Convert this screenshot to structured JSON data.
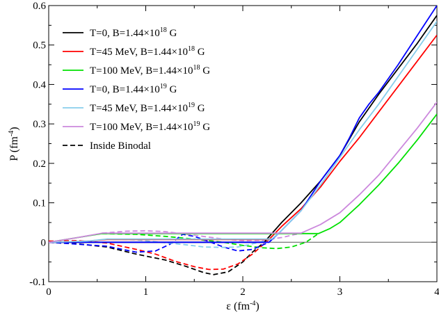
{
  "chart_data": {
    "type": "line",
    "xlabel": {
      "main": "ε (fm",
      "exp": "-4",
      "tail": ")"
    },
    "ylabel": {
      "main": "P (fm",
      "exp": "-4",
      "tail": ")"
    },
    "xlim": [
      0,
      4
    ],
    "ylim": [
      -0.1,
      0.6
    ],
    "xticks": [
      0,
      1,
      2,
      3,
      4
    ],
    "xtick_labels": [
      "0",
      "1",
      "2",
      "3",
      "4"
    ],
    "yticks": [
      -0.1,
      0,
      0.1,
      0.2,
      0.3,
      0.4,
      0.5,
      0.6
    ],
    "ytick_labels": [
      "-0.1",
      "0",
      "0.1",
      "0.2",
      "0.3",
      "0.4",
      "0.5",
      "0.6"
    ],
    "zero_line": true,
    "grid": false,
    "legend_position": "top-left",
    "series": [
      {
        "name": "T=0, B=1.44×10^18 G",
        "label": {
          "pre": "T=0, B=1.44×10",
          "exp": "18",
          "post": " G"
        },
        "color": "#000000",
        "x": [
          0,
          0.5,
          0.58,
          2.22,
          2.4,
          2.6,
          2.8,
          3.0,
          3.2,
          3.4,
          3.6,
          3.8,
          4.0
        ],
        "y": [
          0,
          0,
          0,
          0,
          0.05,
          0.1,
          0.155,
          0.22,
          0.305,
          0.375,
          0.44,
          0.505,
          0.575
        ]
      },
      {
        "name": "T=45 MeV, B=1.44×10^18 G",
        "label": {
          "pre": "T=45 MeV, B=1.44×10",
          "exp": "18",
          "post": " G"
        },
        "color": "#ff0000",
        "x": [
          0,
          0.4,
          0.6,
          2.27,
          2.4,
          2.6,
          2.8,
          3.0,
          3.2,
          3.4,
          3.6,
          3.8,
          4.0
        ],
        "y": [
          0,
          0.003,
          0.007,
          0.007,
          0.04,
          0.085,
          0.14,
          0.205,
          0.265,
          0.33,
          0.395,
          0.46,
          0.525
        ]
      },
      {
        "name": "T=100 MeV, B=1.44×10^18 G",
        "label": {
          "pre": "T=100 MeV, B=1.44×10",
          "exp": "18",
          "post": " G"
        },
        "color": "#00e000",
        "x": [
          0,
          0.3,
          0.55,
          2.78,
          2.9,
          3.0,
          3.2,
          3.4,
          3.6,
          3.8,
          4.0
        ],
        "y": [
          0,
          0.012,
          0.022,
          0.022,
          0.035,
          0.05,
          0.095,
          0.145,
          0.2,
          0.26,
          0.325
        ]
      },
      {
        "name": "T=0, B=1.44×10^19 G",
        "label": {
          "pre": "T=0, B=1.44×10",
          "exp": "19",
          "post": " G"
        },
        "color": "#0000ff",
        "x": [
          0,
          0.5,
          0.58,
          2.27,
          2.4,
          2.6,
          2.8,
          3.0,
          3.1,
          3.2,
          3.3,
          3.4,
          3.6,
          3.8,
          4.0
        ],
        "y": [
          0,
          0,
          0,
          0,
          0.03,
          0.08,
          0.155,
          0.22,
          0.265,
          0.315,
          0.35,
          0.38,
          0.45,
          0.525,
          0.6
        ]
      },
      {
        "name": "T=45 MeV, B=1.44×10^19 G",
        "label": {
          "pre": "T=45 MeV, B=1.44×10",
          "exp": "19",
          "post": " G"
        },
        "color": "#87ceeb",
        "x": [
          0,
          0.4,
          0.6,
          2.3,
          2.4,
          2.6,
          2.8,
          3.0,
          3.2,
          3.4,
          3.6,
          3.8,
          4.0
        ],
        "y": [
          0,
          0.003,
          0.008,
          0.008,
          0.03,
          0.08,
          0.145,
          0.215,
          0.285,
          0.35,
          0.42,
          0.49,
          0.56
        ]
      },
      {
        "name": "T=100 MeV, B=1.44×10^19 G",
        "label": {
          "pre": "T=100 MeV, B=1.44×10",
          "exp": "19",
          "post": " G"
        },
        "color": "#cc88dd",
        "x": [
          0,
          0.3,
          0.55,
          2.6,
          2.8,
          3.0,
          3.2,
          3.4,
          3.6,
          3.8,
          4.0
        ],
        "y": [
          0,
          0.012,
          0.023,
          0.023,
          0.045,
          0.075,
          0.12,
          0.17,
          0.23,
          0.29,
          0.355
        ]
      }
    ],
    "binodal": {
      "name": "Inside Binodal",
      "curves": [
        {
          "color": "#000000",
          "x": [
            0,
            0.3,
            0.6,
            0.9,
            1.2,
            1.4,
            1.6,
            1.7,
            1.85,
            2.0,
            2.1,
            2.22
          ],
          "y": [
            0,
            -0.004,
            -0.012,
            -0.03,
            -0.045,
            -0.06,
            -0.077,
            -0.082,
            -0.075,
            -0.05,
            -0.025,
            0
          ]
        },
        {
          "color": "#ff0000",
          "x": [
            0,
            0.3,
            0.6,
            0.9,
            1.1,
            1.3,
            1.5,
            1.65,
            1.8,
            1.95,
            2.1,
            2.27
          ],
          "y": [
            0.003,
            0.004,
            -0.002,
            -0.018,
            -0.03,
            -0.048,
            -0.062,
            -0.069,
            -0.068,
            -0.055,
            -0.03,
            0.007
          ]
        },
        {
          "color": "#00e000",
          "x": [
            0.55,
            0.9,
            1.2,
            1.5,
            1.8,
            2.0,
            2.2,
            2.35,
            2.5,
            2.65,
            2.78
          ],
          "y": [
            0.022,
            0.02,
            0.015,
            0.008,
            0,
            -0.008,
            -0.014,
            -0.016,
            -0.012,
            0,
            0.022
          ]
        },
        {
          "color": "#0000ff",
          "x": [
            0,
            0.3,
            0.6,
            0.9,
            1.1,
            1.25,
            1.38,
            1.5,
            1.65,
            1.8,
            1.95,
            2.1,
            2.27
          ],
          "y": [
            0,
            -0.005,
            -0.01,
            -0.025,
            -0.022,
            -0.005,
            0.02,
            0.015,
            0.002,
            -0.012,
            -0.022,
            -0.018,
            0
          ]
        },
        {
          "color": "#87ceeb",
          "x": [
            0.6,
            0.9,
            1.2,
            1.4,
            1.6,
            1.8,
            1.95,
            2.1,
            2.3
          ],
          "y": [
            0.008,
            0.006,
            -0.001,
            -0.006,
            -0.012,
            -0.013,
            -0.012,
            -0.004,
            0.008
          ]
        },
        {
          "color": "#cc88dd",
          "x": [
            0.55,
            0.8,
            1.0,
            1.2,
            1.5,
            1.8,
            2.0,
            2.2,
            2.4,
            2.6
          ],
          "y": [
            0.023,
            0.028,
            0.029,
            0.027,
            0.018,
            0.008,
            0.004,
            0.005,
            0.012,
            0.023
          ]
        }
      ]
    }
  }
}
